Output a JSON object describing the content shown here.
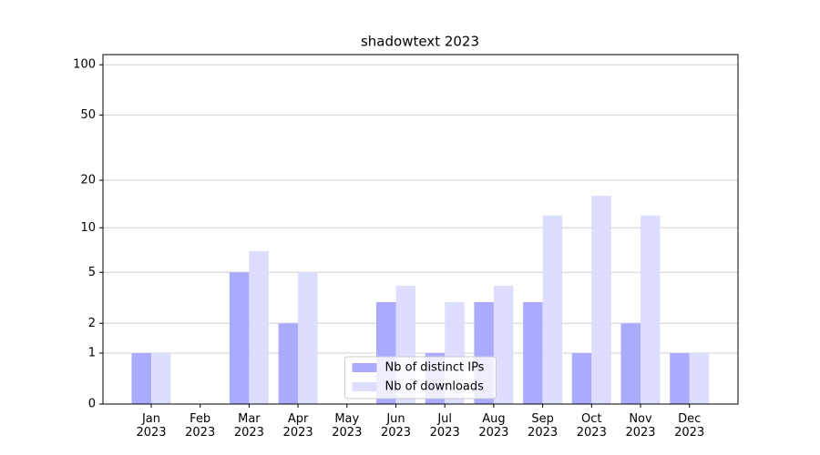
{
  "chart_data": {
    "type": "bar",
    "title": "shadowtext 2023",
    "categories": [
      "Jan\n2023",
      "Feb\n2023",
      "Mar\n2023",
      "Apr\n2023",
      "May\n2023",
      "Jun\n2023",
      "Jul\n2023",
      "Aug\n2023",
      "Sep\n2023",
      "Oct\n2023",
      "Nov\n2023",
      "Dec\n2023"
    ],
    "series": [
      {
        "name": "Nb of distinct IPs",
        "color": "#aaaaff",
        "values": [
          1,
          0,
          5,
          2,
          0,
          3,
          1,
          3,
          3,
          1,
          2,
          1
        ]
      },
      {
        "name": "Nb of downloads",
        "color": "#ddddff",
        "values": [
          1,
          0,
          7,
          5,
          0,
          4,
          3,
          4,
          12,
          16,
          12,
          1
        ]
      }
    ],
    "yscale": "log1p",
    "ylim": [
      0,
      115
    ],
    "yticks": [
      0,
      1,
      2,
      5,
      10,
      20,
      50,
      100
    ],
    "grid": true,
    "legend": "lower center"
  }
}
